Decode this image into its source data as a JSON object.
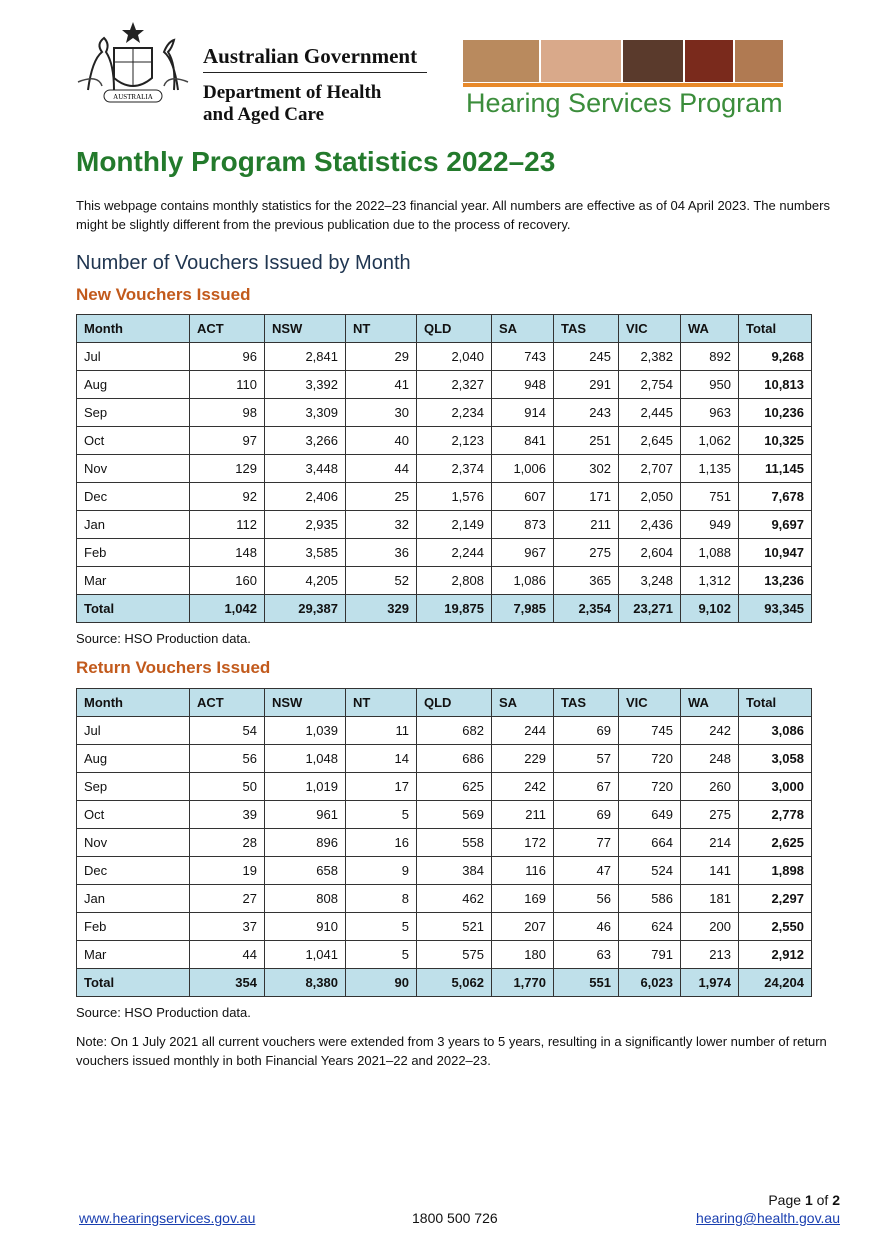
{
  "header": {
    "gov_line1": "Australian Government",
    "gov_line2": "Department of Health",
    "gov_line3": "and Aged Care",
    "crest_text": "AUSTRALIA",
    "program": "Hearing Services Program"
  },
  "title": "Monthly Program Statistics 2022–23",
  "intro": "This webpage contains monthly statistics for the 2022–23 financial year. All numbers are effective as of 04 April 2023. The numbers might be slightly different from the previous publication due to the process of recovery.",
  "section_heading": "Number of Vouchers Issued by Month",
  "tables": [
    {
      "heading": "New Vouchers Issued",
      "columns": [
        "Month",
        "ACT",
        "NSW",
        "NT",
        "QLD",
        "SA",
        "TAS",
        "VIC",
        "WA",
        "Total"
      ],
      "rows": [
        [
          "Jul",
          "96",
          "2,841",
          "29",
          "2,040",
          "743",
          "245",
          "2,382",
          "892",
          "9,268"
        ],
        [
          "Aug",
          "110",
          "3,392",
          "41",
          "2,327",
          "948",
          "291",
          "2,754",
          "950",
          "10,813"
        ],
        [
          "Sep",
          "98",
          "3,309",
          "30",
          "2,234",
          "914",
          "243",
          "2,445",
          "963",
          "10,236"
        ],
        [
          "Oct",
          "97",
          "3,266",
          "40",
          "2,123",
          "841",
          "251",
          "2,645",
          "1,062",
          "10,325"
        ],
        [
          "Nov",
          "129",
          "3,448",
          "44",
          "2,374",
          "1,006",
          "302",
          "2,707",
          "1,135",
          "11,145"
        ],
        [
          "Dec",
          "92",
          "2,406",
          "25",
          "1,576",
          "607",
          "171",
          "2,050",
          "751",
          "7,678"
        ],
        [
          "Jan",
          "112",
          "2,935",
          "32",
          "2,149",
          "873",
          "211",
          "2,436",
          "949",
          "9,697"
        ],
        [
          "Feb",
          "148",
          "3,585",
          "36",
          "2,244",
          "967",
          "275",
          "2,604",
          "1,088",
          "10,947"
        ],
        [
          "Mar",
          "160",
          "4,205",
          "52",
          "2,808",
          "1,086",
          "365",
          "3,248",
          "1,312",
          "13,236"
        ]
      ],
      "total": [
        "Total",
        "1,042",
        "29,387",
        "329",
        "19,875",
        "7,985",
        "2,354",
        "23,271",
        "9,102",
        "93,345"
      ],
      "source": "Source: HSO Production data."
    },
    {
      "heading": "Return Vouchers Issued",
      "columns": [
        "Month",
        "ACT",
        "NSW",
        "NT",
        "QLD",
        "SA",
        "TAS",
        "VIC",
        "WA",
        "Total"
      ],
      "rows": [
        [
          "Jul",
          "54",
          "1,039",
          "11",
          "682",
          "244",
          "69",
          "745",
          "242",
          "3,086"
        ],
        [
          "Aug",
          "56",
          "1,048",
          "14",
          "686",
          "229",
          "57",
          "720",
          "248",
          "3,058"
        ],
        [
          "Sep",
          "50",
          "1,019",
          "17",
          "625",
          "242",
          "67",
          "720",
          "260",
          "3,000"
        ],
        [
          "Oct",
          "39",
          "961",
          "5",
          "569",
          "211",
          "69",
          "649",
          "275",
          "2,778"
        ],
        [
          "Nov",
          "28",
          "896",
          "16",
          "558",
          "172",
          "77",
          "664",
          "214",
          "2,625"
        ],
        [
          "Dec",
          "19",
          "658",
          "9",
          "384",
          "116",
          "47",
          "524",
          "141",
          "1,898"
        ],
        [
          "Jan",
          "27",
          "808",
          "8",
          "462",
          "169",
          "56",
          "586",
          "181",
          "2,297"
        ],
        [
          "Feb",
          "37",
          "910",
          "5",
          "521",
          "207",
          "46",
          "624",
          "200",
          "2,550"
        ],
        [
          "Mar",
          "44",
          "1,041",
          "5",
          "575",
          "180",
          "63",
          "791",
          "213",
          "2,912"
        ]
      ],
      "total": [
        "Total",
        "354",
        "8,380",
        "90",
        "5,062",
        "1,770",
        "551",
        "6,023",
        "1,974",
        "24,204"
      ],
      "source": "Source: HSO Production data."
    }
  ],
  "note": "Note: On 1 July 2021 all current vouchers were extended from 3 years to 5 years, resulting in a significantly lower number of return vouchers issued monthly in both Financial Years 2021–22 and 2022–23.",
  "footer": {
    "page_word": "Page",
    "page_current": "1",
    "page_of": "of",
    "page_total": "2",
    "website": "www.hearingservices.gov.au",
    "phone": "1800 500 726",
    "email": "hearing@health.gov.au"
  }
}
